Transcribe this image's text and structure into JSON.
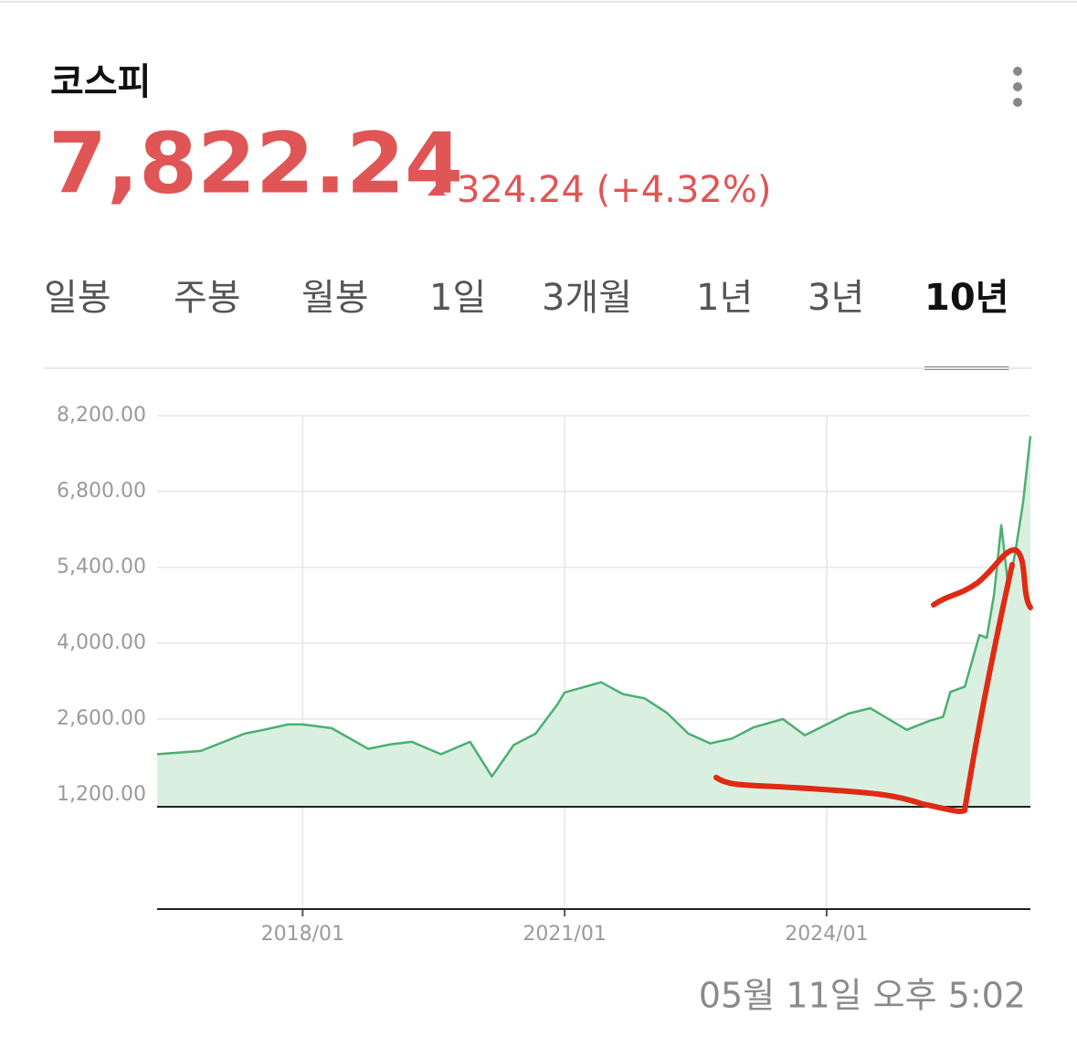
{
  "header": {
    "title": "코스피",
    "price": "7,822.24",
    "change": "324.24 (+4.32%)"
  },
  "tabs": [
    "일봉",
    "주봉",
    "월봉",
    "1일",
    "3개월",
    "1년",
    "3년",
    "10년"
  ],
  "active_tab": 7,
  "timestamp": "05월 11일 오후 5:02",
  "chart_data": {
    "type": "area",
    "x": [
      "2016/05",
      "2016/11",
      "2017/05",
      "2017/08",
      "2017/11",
      "2018/01",
      "2018/05",
      "2018/10",
      "2019/01",
      "2019/04",
      "2019/08",
      "2019/12",
      "2020/03",
      "2020/06",
      "2020/09",
      "2020/12",
      "2021/01",
      "2021/06",
      "2021/09",
      "2021/12",
      "2022/03",
      "2022/06",
      "2022/09",
      "2022/12",
      "2023/03",
      "2023/07",
      "2023/10",
      "2024/01",
      "2024/04",
      "2024/07",
      "2024/10",
      "2024/12",
      "2025/03",
      "2025/05",
      "2025/06",
      "2025/08",
      "2025/10",
      "2025/11",
      "2025/12",
      "2026/01",
      "2026/02",
      "2026/03",
      "2026/04",
      "2026/05"
    ],
    "values": [
      1950,
      2010,
      2330,
      2410,
      2500,
      2500,
      2430,
      2050,
      2130,
      2180,
      1950,
      2180,
      1540,
      2120,
      2330,
      2870,
      3090,
      3280,
      3060,
      2980,
      2720,
      2330,
      2150,
      2240,
      2450,
      2600,
      2300,
      2500,
      2700,
      2800,
      2560,
      2400,
      2560,
      2640,
      3100,
      3200,
      4150,
      4100,
      4900,
      6180,
      5000,
      5750,
      6600,
      7822
    ],
    "color": "#4caf72",
    "xlim": [
      "2016/05",
      "2026/05"
    ],
    "xticks": [
      "2018/01",
      "2021/01",
      "2024/01"
    ],
    "ylim": [
      980,
      8200
    ],
    "yticks": [
      {
        "value": 1200,
        "label": "1,200.00"
      },
      {
        "value": 2600,
        "label": "2,600.00"
      },
      {
        "value": 4000,
        "label": "4,000.00"
      },
      {
        "value": 5400,
        "label": "5,400.00"
      },
      {
        "value": 6800,
        "label": "6,800.00"
      },
      {
        "value": 8200,
        "label": "8,200.00"
      }
    ],
    "grid": true
  }
}
